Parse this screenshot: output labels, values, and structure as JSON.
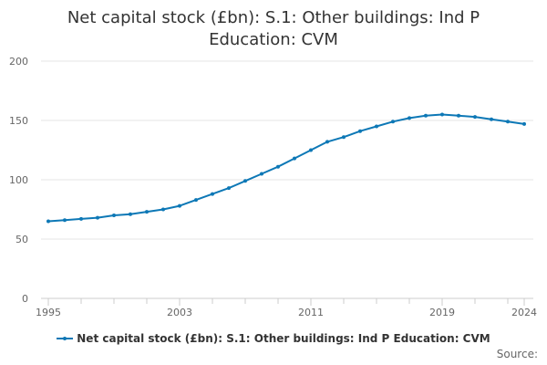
{
  "chart_data": {
    "type": "line",
    "title": "Net capital stock (£bn): S.1: Other buildings: Ind P Education: CVM",
    "xlabel": "",
    "ylabel": "",
    "ylim": [
      0,
      200
    ],
    "xlim": [
      1995,
      2024
    ],
    "y_ticks": [
      "0",
      "50",
      "100",
      "150",
      "200"
    ],
    "x_ticks": [
      "1995",
      "2003",
      "2011",
      "2019",
      "2024"
    ],
    "grid": "horizontal",
    "legend_position": "bottom-center",
    "series": [
      {
        "name": "Net capital stock (£bn): S.1: Other buildings: Ind P Education: CVM",
        "color": "#0d78b6",
        "x": [
          1995,
          1996,
          1997,
          1998,
          1999,
          2000,
          2001,
          2002,
          2003,
          2004,
          2005,
          2006,
          2007,
          2008,
          2009,
          2010,
          2011,
          2012,
          2013,
          2014,
          2015,
          2016,
          2017,
          2018,
          2019,
          2020,
          2021,
          2022,
          2023,
          2024
        ],
        "values": [
          65,
          66,
          67,
          68,
          70,
          71,
          73,
          75,
          78,
          83,
          88,
          93,
          99,
          105,
          111,
          118,
          125,
          132,
          136,
          141,
          145,
          149,
          152,
          154,
          155,
          154,
          153,
          151,
          149,
          147
        ]
      }
    ]
  },
  "legend": {
    "label": "Net capital stock (£bn): S.1: Other buildings: Ind P Education: CVM"
  },
  "source_label": "Source:"
}
